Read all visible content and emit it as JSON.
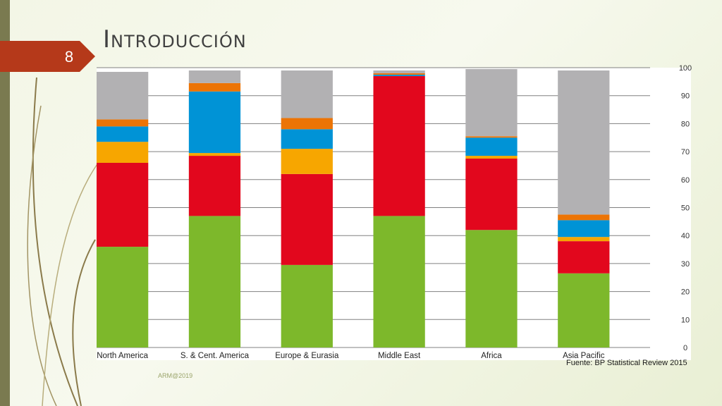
{
  "slide": {
    "number": "8",
    "title": "Introducción",
    "source_note": "Fuente: BP Statistical Review 2015",
    "footer": "ARM@2019"
  },
  "colors": {
    "accent_tab": "#b5391a",
    "left_bar": "#7a7a50",
    "deco_line": "#8a7a4a"
  },
  "chart_data": {
    "type": "bar",
    "stacked": true,
    "categories": [
      "North America",
      "S. & Cent. America",
      "Europe & Eurasia",
      "Middle East",
      "Africa",
      "Asia Pacific"
    ],
    "series": [
      {
        "color": "#7db82b",
        "values": [
          36,
          47,
          29.5,
          47,
          42,
          26.5
        ]
      },
      {
        "color": "#e2071d",
        "values": [
          30,
          21.5,
          32.5,
          50,
          25.5,
          11.5
        ]
      },
      {
        "color": "#f7a600",
        "values": [
          7.5,
          1,
          9,
          0,
          1,
          1.5
        ]
      },
      {
        "color": "#0093d6",
        "values": [
          5.5,
          22,
          7,
          0.5,
          6.5,
          6
        ]
      },
      {
        "color": "#ec7405",
        "values": [
          2.5,
          3,
          4,
          0.5,
          0.5,
          2
        ]
      },
      {
        "color": "#b2b1b3",
        "values": [
          17,
          4.5,
          17,
          1,
          24,
          51.5
        ]
      }
    ],
    "ylim": [
      0,
      100
    ],
    "yticks": [
      "0",
      "10",
      "20",
      "30",
      "40",
      "50",
      "60",
      "70",
      "80",
      "90",
      "100"
    ],
    "y_axis_side": "right",
    "grid": true
  }
}
